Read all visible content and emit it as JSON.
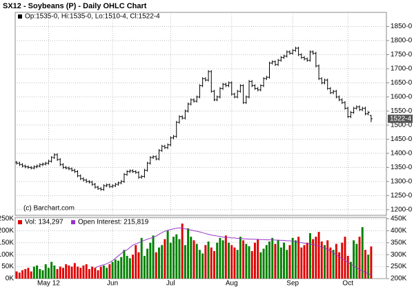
{
  "chart_data": [
    {
      "type": "ohlc",
      "title": "SX12 - Soybeans (P) - Daily OHLC Chart",
      "legend": "Op:1535-0, Hi:1535-0, Lo:1510-4, Cl:1522-4",
      "watermark": "(c) Barchart.com",
      "color": "#000000",
      "grid": true,
      "ylim": [
        1180,
        1900
      ],
      "yticks": [
        {
          "value": 1200,
          "label": "1200-0"
        },
        {
          "value": 1250,
          "label": "1250-0"
        },
        {
          "value": 1300,
          "label": "1300-0"
        },
        {
          "value": 1350,
          "label": "1350-0"
        },
        {
          "value": 1400,
          "label": "1400-0"
        },
        {
          "value": 1450,
          "label": "1450-0"
        },
        {
          "value": 1500,
          "label": "1500-0"
        },
        {
          "value": 1550,
          "label": "1550-0"
        },
        {
          "value": 1600,
          "label": "1600-0"
        },
        {
          "value": 1650,
          "label": "1650-0"
        },
        {
          "value": 1700,
          "label": "1700-0"
        },
        {
          "value": 1750,
          "label": "1750-0"
        },
        {
          "value": 1800,
          "label": "1800-0"
        },
        {
          "value": 1850,
          "label": "1850-0"
        }
      ],
      "last_price": {
        "value": 1522.5,
        "label": "1522-4"
      },
      "ohlc": [
        [
          1368,
          1373,
          1360,
          1365
        ],
        [
          1365,
          1370,
          1355,
          1360
        ],
        [
          1360,
          1365,
          1350,
          1355
        ],
        [
          1355,
          1360,
          1347,
          1352
        ],
        [
          1352,
          1357,
          1345,
          1350
        ],
        [
          1350,
          1355,
          1343,
          1348
        ],
        [
          1348,
          1357,
          1343,
          1352
        ],
        [
          1352,
          1360,
          1347,
          1355
        ],
        [
          1355,
          1365,
          1350,
          1360
        ],
        [
          1360,
          1367,
          1355,
          1362
        ],
        [
          1362,
          1370,
          1357,
          1365
        ],
        [
          1365,
          1377,
          1360,
          1372
        ],
        [
          1372,
          1390,
          1367,
          1385
        ],
        [
          1385,
          1400,
          1380,
          1395
        ],
        [
          1395,
          1400,
          1373,
          1378
        ],
        [
          1378,
          1383,
          1355,
          1360
        ],
        [
          1360,
          1365,
          1345,
          1350
        ],
        [
          1350,
          1355,
          1343,
          1348
        ],
        [
          1348,
          1353,
          1340,
          1345
        ],
        [
          1345,
          1350,
          1335,
          1340
        ],
        [
          1340,
          1345,
          1330,
          1335
        ],
        [
          1335,
          1340,
          1315,
          1320
        ],
        [
          1320,
          1325,
          1305,
          1310
        ],
        [
          1310,
          1315,
          1300,
          1305
        ],
        [
          1305,
          1310,
          1295,
          1300
        ],
        [
          1300,
          1305,
          1293,
          1298
        ],
        [
          1298,
          1303,
          1285,
          1290
        ],
        [
          1290,
          1295,
          1275,
          1280
        ],
        [
          1280,
          1285,
          1270,
          1275
        ],
        [
          1275,
          1280,
          1267,
          1272
        ],
        [
          1272,
          1290,
          1267,
          1285
        ],
        [
          1285,
          1293,
          1280,
          1288
        ],
        [
          1288,
          1293,
          1277,
          1282
        ],
        [
          1282,
          1290,
          1277,
          1285
        ],
        [
          1285,
          1295,
          1280,
          1290
        ],
        [
          1290,
          1300,
          1285,
          1295
        ],
        [
          1295,
          1305,
          1290,
          1300
        ],
        [
          1300,
          1330,
          1295,
          1325
        ],
        [
          1325,
          1340,
          1320,
          1335
        ],
        [
          1335,
          1343,
          1330,
          1338
        ],
        [
          1338,
          1343,
          1330,
          1335
        ],
        [
          1335,
          1340,
          1327,
          1332
        ],
        [
          1332,
          1337,
          1310,
          1315
        ],
        [
          1315,
          1323,
          1310,
          1318
        ],
        [
          1318,
          1345,
          1313,
          1340
        ],
        [
          1340,
          1370,
          1335,
          1365
        ],
        [
          1365,
          1390,
          1360,
          1385
        ],
        [
          1385,
          1393,
          1380,
          1388
        ],
        [
          1388,
          1393,
          1375,
          1380
        ],
        [
          1380,
          1415,
          1375,
          1410
        ],
        [
          1410,
          1430,
          1405,
          1425
        ],
        [
          1425,
          1430,
          1415,
          1420
        ],
        [
          1420,
          1435,
          1415,
          1430
        ],
        [
          1430,
          1460,
          1425,
          1455
        ],
        [
          1455,
          1465,
          1450,
          1460
        ],
        [
          1460,
          1515,
          1455,
          1510
        ],
        [
          1510,
          1535,
          1505,
          1530
        ],
        [
          1530,
          1535,
          1520,
          1525
        ],
        [
          1525,
          1555,
          1520,
          1550
        ],
        [
          1550,
          1580,
          1545,
          1575
        ],
        [
          1575,
          1595,
          1570,
          1590
        ],
        [
          1590,
          1595,
          1580,
          1585
        ],
        [
          1585,
          1605,
          1580,
          1600
        ],
        [
          1600,
          1645,
          1595,
          1640
        ],
        [
          1640,
          1670,
          1635,
          1665
        ],
        [
          1665,
          1670,
          1655,
          1660
        ],
        [
          1660,
          1695,
          1655,
          1690
        ],
        [
          1690,
          1695,
          1615,
          1620
        ],
        [
          1620,
          1625,
          1585,
          1590
        ],
        [
          1590,
          1605,
          1585,
          1600
        ],
        [
          1600,
          1635,
          1595,
          1630
        ],
        [
          1630,
          1650,
          1625,
          1645
        ],
        [
          1645,
          1650,
          1635,
          1640
        ],
        [
          1640,
          1655,
          1635,
          1650
        ],
        [
          1650,
          1655,
          1605,
          1610
        ],
        [
          1610,
          1615,
          1595,
          1600
        ],
        [
          1600,
          1625,
          1595,
          1620
        ],
        [
          1620,
          1645,
          1615,
          1640
        ],
        [
          1640,
          1645,
          1575,
          1580
        ],
        [
          1580,
          1605,
          1575,
          1600
        ],
        [
          1600,
          1660,
          1595,
          1655
        ],
        [
          1655,
          1660,
          1635,
          1640
        ],
        [
          1640,
          1645,
          1625,
          1630
        ],
        [
          1630,
          1635,
          1620,
          1625
        ],
        [
          1625,
          1645,
          1620,
          1640
        ],
        [
          1640,
          1670,
          1635,
          1665
        ],
        [
          1665,
          1675,
          1660,
          1670
        ],
        [
          1670,
          1725,
          1665,
          1720
        ],
        [
          1720,
          1730,
          1715,
          1725
        ],
        [
          1725,
          1730,
          1710,
          1715
        ],
        [
          1715,
          1735,
          1710,
          1730
        ],
        [
          1730,
          1745,
          1725,
          1740
        ],
        [
          1740,
          1750,
          1735,
          1745
        ],
        [
          1745,
          1765,
          1740,
          1760
        ],
        [
          1760,
          1765,
          1750,
          1755
        ],
        [
          1755,
          1770,
          1750,
          1765
        ],
        [
          1765,
          1778,
          1760,
          1773
        ],
        [
          1773,
          1778,
          1745,
          1750
        ],
        [
          1750,
          1755,
          1735,
          1740
        ],
        [
          1740,
          1745,
          1730,
          1735
        ],
        [
          1735,
          1740,
          1725,
          1730
        ],
        [
          1730,
          1765,
          1725,
          1760
        ],
        [
          1760,
          1765,
          1750,
          1755
        ],
        [
          1755,
          1760,
          1705,
          1710
        ],
        [
          1710,
          1715,
          1660,
          1665
        ],
        [
          1665,
          1670,
          1645,
          1650
        ],
        [
          1650,
          1665,
          1645,
          1660
        ],
        [
          1660,
          1665,
          1625,
          1630
        ],
        [
          1630,
          1635,
          1610,
          1615
        ],
        [
          1615,
          1625,
          1610,
          1620
        ],
        [
          1620,
          1625,
          1595,
          1600
        ],
        [
          1600,
          1605,
          1585,
          1590
        ],
        [
          1590,
          1595,
          1575,
          1580
        ],
        [
          1580,
          1585,
          1555,
          1560
        ],
        [
          1560,
          1565,
          1525,
          1530
        ],
        [
          1530,
          1550,
          1525,
          1545
        ],
        [
          1545,
          1565,
          1540,
          1560
        ],
        [
          1560,
          1570,
          1555,
          1565
        ],
        [
          1565,
          1570,
          1550,
          1555
        ],
        [
          1555,
          1565,
          1550,
          1560
        ],
        [
          1560,
          1565,
          1535,
          1540
        ],
        [
          1540,
          1550,
          1535,
          1545
        ],
        [
          1535,
          1535,
          1510.5,
          1522.5
        ]
      ]
    },
    {
      "type": "bar",
      "grid": true,
      "categories": [
        null,
        null,
        null,
        null,
        null,
        null,
        null,
        null,
        null,
        null,
        null,
        "May 12",
        null,
        null,
        null,
        null,
        null,
        null,
        null,
        null,
        null,
        null,
        null,
        null,
        null,
        null,
        null,
        null,
        null,
        null,
        null,
        null,
        null,
        "Jun",
        null,
        null,
        null,
        null,
        null,
        null,
        null,
        null,
        null,
        null,
        null,
        null,
        null,
        null,
        null,
        null,
        null,
        null,
        null,
        "Jul",
        null,
        null,
        null,
        null,
        null,
        null,
        null,
        null,
        null,
        null,
        null,
        null,
        null,
        null,
        null,
        null,
        null,
        null,
        null,
        null,
        "Aug",
        null,
        null,
        null,
        null,
        null,
        null,
        null,
        null,
        null,
        null,
        null,
        null,
        null,
        null,
        null,
        null,
        null,
        null,
        null,
        null,
        "Sep",
        null,
        null,
        null,
        null,
        null,
        null,
        null,
        null,
        null,
        null,
        null,
        null,
        null,
        null,
        null,
        null,
        null,
        null,
        "Oct",
        null,
        null,
        null,
        null,
        null,
        null,
        null,
        null
      ],
      "ylim": [
        0,
        250000
      ],
      "yticks": [
        {
          "value": 0,
          "label": "0K"
        },
        {
          "value": 50000,
          "label": "50K"
        },
        {
          "value": 100000,
          "label": "100K"
        },
        {
          "value": 150000,
          "label": "150K"
        },
        {
          "value": 200000,
          "label": "200K"
        },
        {
          "value": 250000,
          "label": "250K"
        }
      ],
      "y2lim": [
        200000,
        450000
      ],
      "y2ticks": [
        {
          "value": 200000,
          "label": "200K"
        },
        {
          "value": 250000,
          "label": "250K"
        },
        {
          "value": 300000,
          "label": "300K"
        },
        {
          "value": 350000,
          "label": "350K"
        },
        {
          "value": 400000,
          "label": "400K"
        },
        {
          "value": 450000,
          "label": "450K"
        }
      ],
      "series": [
        {
          "name": "Vol: 134,297",
          "up_color": "#008000",
          "down_color": "#e00000",
          "values": [
            30000,
            25000,
            35000,
            40000,
            45000,
            30000,
            50000,
            55000,
            40000,
            35000,
            60000,
            45000,
            70000,
            55000,
            40000,
            50000,
            45000,
            60000,
            55000,
            50000,
            65000,
            50000,
            45000,
            55000,
            60000,
            40000,
            50000,
            45000,
            35000,
            50000,
            55000,
            45000,
            60000,
            70000,
            80000,
            75000,
            90000,
            120000,
            95000,
            85000,
            100000,
            140000,
            110000,
            170000,
            95000,
            125000,
            150000,
            180000,
            110000,
            130000,
            140000,
            165000,
            200000,
            150000,
            175000,
            185000,
            165000,
            230000,
            140000,
            210000,
            175000,
            160000,
            145000,
            120000,
            105000,
            140000,
            155000,
            130000,
            115000,
            150000,
            170000,
            160000,
            180000,
            150000,
            140000,
            130000,
            120000,
            175000,
            160000,
            145000,
            135000,
            115000,
            150000,
            165000,
            110000,
            125000,
            140000,
            155000,
            170000,
            145000,
            160000,
            130000,
            150000,
            120000,
            140000,
            170000,
            160000,
            175000,
            130000,
            140000,
            150000,
            190000,
            165000,
            175000,
            195000,
            155000,
            140000,
            160000,
            130000,
            120000,
            145000,
            110000,
            150000,
            175000,
            95000,
            70000,
            160000,
            145000,
            175000,
            215000,
            120000,
            100000,
            134297
          ]
        },
        {
          "name": "Open Interest: 215,819",
          "type": "line",
          "axis": "y2",
          "color": "#9933cc",
          "values": [
            null,
            null,
            null,
            null,
            null,
            null,
            null,
            null,
            null,
            null,
            null,
            null,
            null,
            null,
            null,
            null,
            null,
            null,
            null,
            null,
            null,
            null,
            null,
            null,
            null,
            null,
            null,
            245000,
            250000,
            255000,
            258000,
            262000,
            268000,
            275000,
            285000,
            295000,
            305000,
            315000,
            320000,
            330000,
            340000,
            345000,
            350000,
            355000,
            360000,
            365000,
            368000,
            372000,
            378000,
            385000,
            392000,
            398000,
            402000,
            405000,
            408000,
            410000,
            412000,
            410000,
            408000,
            405000,
            403000,
            400000,
            398000,
            395000,
            392000,
            388000,
            385000,
            382000,
            380000,
            378000,
            376000,
            374000,
            372000,
            372000,
            370000,
            370000,
            368000,
            368000,
            366000,
            366000,
            365000,
            365000,
            364000,
            364000,
            363000,
            363000,
            362000,
            362000,
            362000,
            361000,
            361000,
            360000,
            360000,
            358000,
            358000,
            356000,
            355000,
            352000,
            350000,
            348000,
            346000,
            344000,
            342000,
            340000,
            336000,
            332000,
            328000,
            322000,
            316000,
            308000,
            300000,
            292000,
            284000,
            276000,
            268000,
            260000,
            252000,
            245000,
            238000,
            232000,
            226000,
            220000,
            215819
          ]
        }
      ]
    }
  ]
}
